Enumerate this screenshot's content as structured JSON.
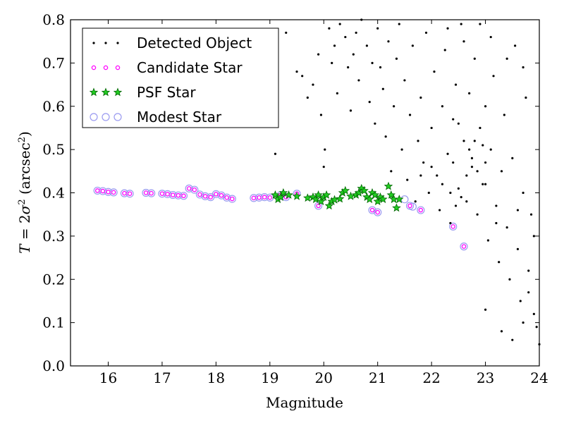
{
  "chart_data": {
    "type": "scatter",
    "title": "",
    "xlabel": "Magnitude",
    "ylabel_parts": {
      "var": "T",
      "eq": " = 2",
      "sigma": "σ",
      "sup": "2",
      "unit_open": " (arcsec",
      "unit_sup": "2",
      "unit_close": ")"
    },
    "xlim": [
      15.3,
      24.0
    ],
    "ylim": [
      0.0,
      0.8
    ],
    "xticks": [
      "16",
      "17",
      "18",
      "19",
      "20",
      "21",
      "22",
      "23",
      "24"
    ],
    "yticks": [
      "0.0",
      "0.1",
      "0.2",
      "0.3",
      "0.4",
      "0.5",
      "0.6",
      "0.7",
      "0.8"
    ],
    "grid": false,
    "legend_position": "top-left",
    "colors": {
      "detected": "#000000",
      "candidate_edge": "#ff00ff",
      "candidate_face": "#ffffff",
      "psf_face": "#22cc22",
      "psf_edge": "#006400",
      "modest_edge": "#9a9af0"
    },
    "series": [
      {
        "name": "Detected Object",
        "marker": "dot",
        "points": [
          [
            19.1,
            0.49
          ],
          [
            19.3,
            0.77
          ],
          [
            19.5,
            0.68
          ],
          [
            19.6,
            0.67
          ],
          [
            19.7,
            0.62
          ],
          [
            19.8,
            0.65
          ],
          [
            19.9,
            0.72
          ],
          [
            19.95,
            0.58
          ],
          [
            20.0,
            0.46
          ],
          [
            20.02,
            0.5
          ],
          [
            20.1,
            0.78
          ],
          [
            20.15,
            0.7
          ],
          [
            20.2,
            0.74
          ],
          [
            20.25,
            0.63
          ],
          [
            20.3,
            0.79
          ],
          [
            20.4,
            0.76
          ],
          [
            20.45,
            0.69
          ],
          [
            20.5,
            0.59
          ],
          [
            20.55,
            0.72
          ],
          [
            20.6,
            0.77
          ],
          [
            20.65,
            0.66
          ],
          [
            20.7,
            0.8
          ],
          [
            20.8,
            0.74
          ],
          [
            20.85,
            0.61
          ],
          [
            20.9,
            0.7
          ],
          [
            20.95,
            0.56
          ],
          [
            21.0,
            0.78
          ],
          [
            21.05,
            0.69
          ],
          [
            21.1,
            0.64
          ],
          [
            21.15,
            0.53
          ],
          [
            21.2,
            0.75
          ],
          [
            21.25,
            0.45
          ],
          [
            21.3,
            0.6
          ],
          [
            21.35,
            0.71
          ],
          [
            21.4,
            0.79
          ],
          [
            21.45,
            0.5
          ],
          [
            21.5,
            0.66
          ],
          [
            21.55,
            0.43
          ],
          [
            21.6,
            0.58
          ],
          [
            21.65,
            0.74
          ],
          [
            21.7,
            0.38
          ],
          [
            21.75,
            0.52
          ],
          [
            21.8,
            0.62
          ],
          [
            21.85,
            0.47
          ],
          [
            21.9,
            0.77
          ],
          [
            21.95,
            0.4
          ],
          [
            22.0,
            0.55
          ],
          [
            22.05,
            0.68
          ],
          [
            22.1,
            0.44
          ],
          [
            22.15,
            0.36
          ],
          [
            22.2,
            0.6
          ],
          [
            22.25,
            0.73
          ],
          [
            22.3,
            0.49
          ],
          [
            22.35,
            0.33
          ],
          [
            22.4,
            0.57
          ],
          [
            22.45,
            0.65
          ],
          [
            22.5,
            0.41
          ],
          [
            22.55,
            0.79
          ],
          [
            22.6,
            0.52
          ],
          [
            22.65,
            0.38
          ],
          [
            22.7,
            0.63
          ],
          [
            22.75,
            0.46
          ],
          [
            22.8,
            0.71
          ],
          [
            22.85,
            0.35
          ],
          [
            22.9,
            0.55
          ],
          [
            22.95,
            0.42
          ],
          [
            23.0,
            0.6
          ],
          [
            23.05,
            0.29
          ],
          [
            23.1,
            0.5
          ],
          [
            23.15,
            0.67
          ],
          [
            23.2,
            0.37
          ],
          [
            23.25,
            0.24
          ],
          [
            23.3,
            0.45
          ],
          [
            23.35,
            0.58
          ],
          [
            23.4,
            0.32
          ],
          [
            23.45,
            0.2
          ],
          [
            23.5,
            0.48
          ],
          [
            23.55,
            0.74
          ],
          [
            23.6,
            0.27
          ],
          [
            23.65,
            0.15
          ],
          [
            23.7,
            0.4
          ],
          [
            23.75,
            0.62
          ],
          [
            23.8,
            0.22
          ],
          [
            23.85,
            0.35
          ],
          [
            23.9,
            0.12
          ],
          [
            23.95,
            0.09
          ],
          [
            24.0,
            0.05
          ],
          [
            22.3,
            0.78
          ],
          [
            22.6,
            0.75
          ],
          [
            22.9,
            0.79
          ],
          [
            23.1,
            0.76
          ],
          [
            23.4,
            0.71
          ],
          [
            23.7,
            0.69
          ],
          [
            22.8,
            0.52
          ],
          [
            22.4,
            0.47
          ],
          [
            23.0,
            0.42
          ],
          [
            22.7,
            0.5
          ],
          [
            23.2,
            0.33
          ],
          [
            23.6,
            0.36
          ],
          [
            23.9,
            0.3
          ],
          [
            23.3,
            0.08
          ],
          [
            23.5,
            0.06
          ],
          [
            23.8,
            0.17
          ],
          [
            23.7,
            0.1
          ],
          [
            23.0,
            0.13
          ],
          [
            22.5,
            0.56
          ],
          [
            22.2,
            0.42
          ],
          [
            22.0,
            0.46
          ],
          [
            21.8,
            0.44
          ],
          [
            23.0,
            0.47
          ],
          [
            22.95,
            0.51
          ],
          [
            22.85,
            0.45
          ],
          [
            22.75,
            0.48
          ],
          [
            22.65,
            0.44
          ],
          [
            22.55,
            0.39
          ],
          [
            22.45,
            0.37
          ],
          [
            22.35,
            0.4
          ]
        ]
      },
      {
        "name": "Candidate Star",
        "marker": "small-circle",
        "points": [
          [
            15.8,
            0.405
          ],
          [
            15.9,
            0.404
          ],
          [
            16.0,
            0.402
          ],
          [
            16.1,
            0.401
          ],
          [
            16.3,
            0.399
          ],
          [
            16.4,
            0.398
          ],
          [
            16.7,
            0.4
          ],
          [
            16.8,
            0.399
          ],
          [
            17.0,
            0.398
          ],
          [
            17.1,
            0.397
          ],
          [
            17.2,
            0.395
          ],
          [
            17.3,
            0.394
          ],
          [
            17.4,
            0.393
          ],
          [
            17.5,
            0.41
          ],
          [
            17.6,
            0.407
          ],
          [
            17.7,
            0.396
          ],
          [
            17.8,
            0.392
          ],
          [
            17.9,
            0.39
          ],
          [
            18.0,
            0.397
          ],
          [
            18.1,
            0.394
          ],
          [
            18.2,
            0.389
          ],
          [
            18.3,
            0.386
          ],
          [
            18.7,
            0.388
          ],
          [
            18.8,
            0.389
          ],
          [
            18.9,
            0.39
          ],
          [
            19.0,
            0.389
          ],
          [
            19.2,
            0.395
          ],
          [
            19.3,
            0.39
          ],
          [
            19.5,
            0.398
          ],
          [
            19.9,
            0.37
          ],
          [
            20.9,
            0.36
          ],
          [
            21.0,
            0.355
          ],
          [
            21.6,
            0.37
          ],
          [
            21.8,
            0.36
          ],
          [
            22.4,
            0.322
          ],
          [
            22.6,
            0.276
          ]
        ]
      },
      {
        "name": "PSF Star",
        "marker": "star",
        "points": [
          [
            19.1,
            0.395
          ],
          [
            19.15,
            0.385
          ],
          [
            19.2,
            0.39
          ],
          [
            19.25,
            0.4
          ],
          [
            19.35,
            0.395
          ],
          [
            19.5,
            0.392
          ],
          [
            19.7,
            0.388
          ],
          [
            19.8,
            0.39
          ],
          [
            19.85,
            0.385
          ],
          [
            19.9,
            0.395
          ],
          [
            19.95,
            0.38
          ],
          [
            20.0,
            0.39
          ],
          [
            20.05,
            0.395
          ],
          [
            20.1,
            0.37
          ],
          [
            20.15,
            0.38
          ],
          [
            20.2,
            0.384
          ],
          [
            20.3,
            0.386
          ],
          [
            20.35,
            0.4
          ],
          [
            20.4,
            0.405
          ],
          [
            20.5,
            0.392
          ],
          [
            20.6,
            0.395
          ],
          [
            20.65,
            0.4
          ],
          [
            20.7,
            0.41
          ],
          [
            20.75,
            0.405
          ],
          [
            20.8,
            0.39
          ],
          [
            20.85,
            0.385
          ],
          [
            20.9,
            0.4
          ],
          [
            20.95,
            0.395
          ],
          [
            21.0,
            0.38
          ],
          [
            21.05,
            0.39
          ],
          [
            21.1,
            0.385
          ],
          [
            21.2,
            0.415
          ],
          [
            21.25,
            0.395
          ],
          [
            21.3,
            0.385
          ],
          [
            21.35,
            0.365
          ],
          [
            21.4,
            0.385
          ]
        ]
      },
      {
        "name": "Modest Star",
        "marker": "open-circle",
        "points": [
          [
            15.8,
            0.405
          ],
          [
            15.9,
            0.404
          ],
          [
            16.0,
            0.402
          ],
          [
            16.1,
            0.401
          ],
          [
            16.3,
            0.399
          ],
          [
            16.4,
            0.398
          ],
          [
            16.7,
            0.4
          ],
          [
            16.8,
            0.399
          ],
          [
            17.0,
            0.398
          ],
          [
            17.1,
            0.397
          ],
          [
            17.2,
            0.395
          ],
          [
            17.3,
            0.394
          ],
          [
            17.4,
            0.393
          ],
          [
            17.5,
            0.41
          ],
          [
            17.6,
            0.407
          ],
          [
            17.7,
            0.396
          ],
          [
            17.8,
            0.392
          ],
          [
            17.9,
            0.39
          ],
          [
            18.0,
            0.397
          ],
          [
            18.1,
            0.394
          ],
          [
            18.2,
            0.389
          ],
          [
            18.3,
            0.386
          ],
          [
            18.7,
            0.388
          ],
          [
            18.8,
            0.389
          ],
          [
            18.9,
            0.39
          ],
          [
            19.0,
            0.389
          ],
          [
            19.2,
            0.395
          ],
          [
            19.3,
            0.39
          ],
          [
            19.5,
            0.398
          ],
          [
            19.9,
            0.37
          ],
          [
            20.9,
            0.36
          ],
          [
            21.0,
            0.355
          ],
          [
            21.5,
            0.385
          ],
          [
            21.6,
            0.37
          ],
          [
            21.65,
            0.368
          ],
          [
            21.8,
            0.36
          ],
          [
            22.4,
            0.322
          ],
          [
            22.6,
            0.276
          ]
        ]
      }
    ]
  }
}
